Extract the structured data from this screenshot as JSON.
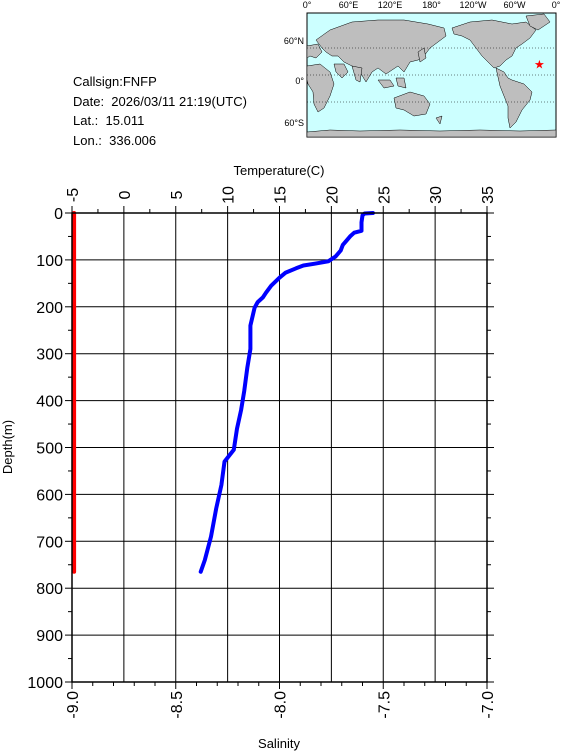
{
  "station": {
    "callsign": "Callsign:FNFP",
    "date": "Date:  2026/03/11 21:19(UTC)",
    "lat": "Lat.:  15.011",
    "lon": "Lon.:  336.006"
  },
  "map": {
    "lon_ticks": [
      "0°",
      "60°E",
      "120°E",
      "180°",
      "120°W",
      "60°W",
      "0°"
    ],
    "lat_ticks": [
      "60°N",
      "0°",
      "60°S"
    ],
    "ocean_color": "#ccffff",
    "land_color": "#bebebe",
    "marker_color": "#ff0000",
    "marker_icon": "star-icon",
    "marker_lon": 336.006,
    "marker_lat": 15.011
  },
  "chart_data": {
    "type": "line",
    "top_axis_label": "Temperature(C)",
    "left_axis_label": "Depth(m)",
    "bottom_axis_label": "Salinity",
    "depth_range": [
      0,
      1000
    ],
    "depth_ticks": [
      "0",
      "100",
      "200",
      "300",
      "400",
      "500",
      "600",
      "700",
      "800",
      "900",
      "1000"
    ],
    "temperature_range": [
      -5,
      35
    ],
    "temperature_ticks": [
      "-5",
      "0",
      "5",
      "10",
      "15",
      "20",
      "25",
      "30",
      "35"
    ],
    "salinity_range": [
      -9.0,
      -7.0
    ],
    "salinity_ticks": [
      "-9.0",
      "-8.5",
      "-8.0",
      "-7.5",
      "-7.0"
    ],
    "grid": true,
    "series": [
      {
        "color": "#0000ff",
        "axis": "temperature",
        "points": [
          {
            "t": 24.0,
            "d": 0
          },
          {
            "t": 23.2,
            "d": 1
          },
          {
            "t": 23.0,
            "d": 5
          },
          {
            "t": 22.9,
            "d": 20
          },
          {
            "t": 22.9,
            "d": 38
          },
          {
            "t": 22.2,
            "d": 42
          },
          {
            "t": 21.8,
            "d": 50
          },
          {
            "t": 21.5,
            "d": 58
          },
          {
            "t": 21.1,
            "d": 68
          },
          {
            "t": 20.9,
            "d": 80
          },
          {
            "t": 20.4,
            "d": 93
          },
          {
            "t": 19.7,
            "d": 103
          },
          {
            "t": 18.4,
            "d": 108
          },
          {
            "t": 17.3,
            "d": 112
          },
          {
            "t": 16.6,
            "d": 118
          },
          {
            "t": 15.6,
            "d": 127
          },
          {
            "t": 15.0,
            "d": 138
          },
          {
            "t": 14.2,
            "d": 155
          },
          {
            "t": 13.7,
            "d": 170
          },
          {
            "t": 13.4,
            "d": 180
          },
          {
            "t": 12.9,
            "d": 190
          },
          {
            "t": 12.6,
            "d": 202
          },
          {
            "t": 12.2,
            "d": 240
          },
          {
            "t": 12.2,
            "d": 290
          },
          {
            "t": 11.9,
            "d": 330
          },
          {
            "t": 11.6,
            "d": 380
          },
          {
            "t": 11.3,
            "d": 420
          },
          {
            "t": 10.9,
            "d": 460
          },
          {
            "t": 10.6,
            "d": 505
          },
          {
            "t": 9.7,
            "d": 530
          },
          {
            "t": 9.4,
            "d": 580
          },
          {
            "t": 8.9,
            "d": 630
          },
          {
            "t": 8.4,
            "d": 690
          },
          {
            "t": 7.8,
            "d": 740
          },
          {
            "t": 7.4,
            "d": 765
          }
        ]
      },
      {
        "color": "#ff0000",
        "axis": "salinity",
        "points": [
          {
            "s": -8.99,
            "d": 0
          },
          {
            "s": -8.99,
            "d": 765
          }
        ]
      }
    ]
  }
}
